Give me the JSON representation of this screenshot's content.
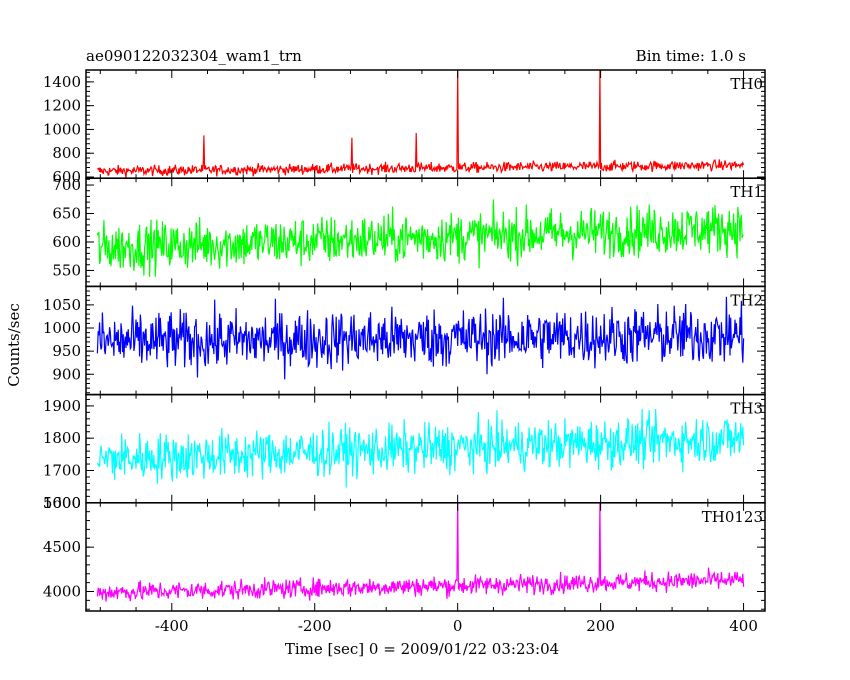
{
  "header": {
    "title": "ae090122032304_wam1_trn",
    "bin_time": "Bin time: 1.0 s"
  },
  "chart_data": {
    "type": "line",
    "title": "ae090122032304_wam1_trn",
    "subtitle": "Bin time: 1.0 s",
    "xlabel": "Time [sec] 0 = 2009/01/22 03:23:04",
    "ylabel": "Counts/sec",
    "xlim": [
      -520,
      430
    ],
    "x_ticks": [
      -400,
      -200,
      0,
      200,
      400
    ],
    "x_range": [
      -504,
      400
    ],
    "panels": [
      {
        "name": "TH0",
        "color": "#ff0000",
        "ylim": [
          590,
          1500
        ],
        "y_ticks": [
          600,
          800,
          1000,
          1200,
          1400
        ],
        "baseline": {
          "start": 650,
          "end": 700,
          "noise": 22
        },
        "spikes": [
          {
            "x": -355,
            "y": 950
          },
          {
            "x": -148,
            "y": 930
          },
          {
            "x": -58,
            "y": 970
          },
          {
            "x": 0,
            "y": 1500
          },
          {
            "x": 199,
            "y": 1500
          }
        ]
      },
      {
        "name": "TH1",
        "color": "#00ff00",
        "ylim": [
          522,
          712
        ],
        "y_ticks": [
          550,
          600,
          650,
          700
        ],
        "baseline": {
          "start": 590,
          "end": 625,
          "noise": 22
        },
        "spikes": []
      },
      {
        "name": "TH2",
        "color": "#0000ff",
        "ylim": [
          856,
          1090
        ],
        "y_ticks": [
          900,
          950,
          1000,
          1050
        ],
        "baseline": {
          "start": 970,
          "end": 985,
          "noise": 32
        },
        "spikes": []
      },
      {
        "name": "TH3",
        "color": "#00ffff",
        "ylim": [
          1600,
          1935
        ],
        "y_ticks": [
          1600,
          1700,
          1800,
          1900
        ],
        "baseline": {
          "start": 1735,
          "end": 1800,
          "noise": 38
        },
        "spikes": []
      },
      {
        "name": "TH0123",
        "color": "#ff00ff",
        "ylim": [
          3780,
          5000
        ],
        "y_ticks": [
          4000,
          4500,
          5000
        ],
        "baseline": {
          "start": 3990,
          "end": 4130,
          "noise": 55
        },
        "spikes": [
          {
            "x": 0,
            "y": 5000
          },
          {
            "x": 199,
            "y": 5000
          }
        ]
      }
    ]
  }
}
